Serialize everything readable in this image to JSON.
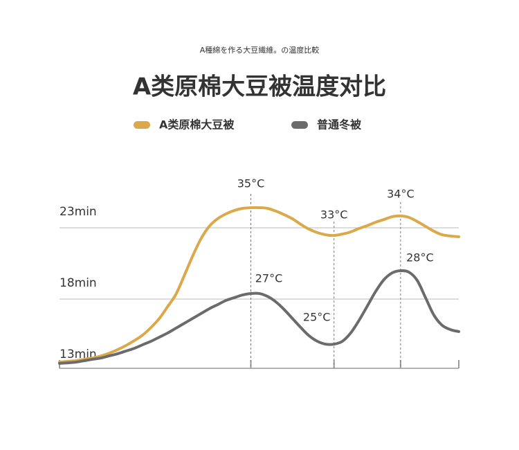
{
  "chart_data": {
    "type": "line",
    "subtitle": "A種綿を作る大豆繊維。の温度比較",
    "title": "A类原棉大豆被温度对比",
    "categories": [
      null,
      null,
      null,
      null,
      null,
      null,
      null,
      null,
      null,
      null,
      null,
      null,
      null,
      null,
      null,
      null,
      null,
      null,
      null,
      null,
      null,
      null,
      null,
      null,
      null,
      null,
      null,
      null,
      null,
      null,
      null,
      null,
      null,
      null,
      null,
      null,
      null,
      null,
      null,
      null,
      null,
      null,
      null,
      null,
      null,
      null,
      null,
      null,
      null
    ],
    "ylim": [
      13,
      25
    ],
    "yticks": [
      {
        "value": 23,
        "label": "23min"
      },
      {
        "value": 18,
        "label": "18min"
      },
      {
        "value": 13,
        "label": "13min"
      }
    ],
    "grid": true,
    "series": [
      {
        "name": "A类原棉大豆被",
        "color": "#dba84a",
        "values": [
          13.58,
          13.63,
          13.68,
          13.78,
          13.87,
          14.02,
          14.21,
          14.46,
          14.75,
          15.09,
          15.48,
          16.01,
          16.64,
          17.47,
          18.34,
          19.65,
          21.01,
          22.22,
          23.1,
          23.63,
          23.97,
          24.21,
          24.36,
          24.41,
          24.41,
          24.36,
          24.17,
          23.92,
          23.63,
          23.24,
          22.9,
          22.66,
          22.51,
          22.46,
          22.56,
          22.71,
          22.95,
          23.15,
          23.39,
          23.58,
          23.78,
          23.83,
          23.73,
          23.44,
          23.1,
          22.76,
          22.51,
          22.42,
          22.37
        ],
        "labels": [
          null,
          null,
          null,
          null,
          null,
          null,
          null,
          null,
          null,
          null,
          null,
          null,
          null,
          null,
          null,
          null,
          null,
          null,
          null,
          null,
          null,
          null,
          null,
          "35°C",
          null,
          null,
          null,
          null,
          null,
          null,
          null,
          null,
          null,
          "33°C",
          null,
          null,
          null,
          null,
          null,
          null,
          null,
          "34°C",
          null,
          null,
          null,
          null,
          null,
          null,
          null
        ]
      },
      {
        "name": "普通冬被",
        "color": "#6b6b6b",
        "values": [
          13.49,
          13.53,
          13.58,
          13.68,
          13.78,
          13.87,
          14.02,
          14.17,
          14.36,
          14.55,
          14.8,
          15.04,
          15.33,
          15.62,
          15.96,
          16.3,
          16.64,
          16.98,
          17.32,
          17.61,
          17.9,
          18.1,
          18.29,
          18.39,
          18.39,
          18.19,
          17.81,
          17.27,
          16.64,
          16.01,
          15.43,
          15.04,
          14.84,
          14.84,
          15.04,
          15.62,
          16.5,
          17.51,
          18.53,
          19.36,
          19.84,
          19.99,
          19.89,
          19.31,
          18.1,
          16.88,
          16.16,
          15.86,
          15.72
        ],
        "labels": [
          null,
          null,
          null,
          null,
          null,
          null,
          null,
          null,
          null,
          null,
          null,
          null,
          null,
          null,
          null,
          null,
          null,
          null,
          null,
          null,
          null,
          null,
          null,
          "27°C",
          null,
          null,
          null,
          null,
          null,
          null,
          null,
          null,
          null,
          "25°C",
          null,
          null,
          null,
          null,
          null,
          null,
          null,
          "28°C",
          null,
          null,
          null,
          null,
          null,
          null,
          null
        ]
      }
    ]
  }
}
